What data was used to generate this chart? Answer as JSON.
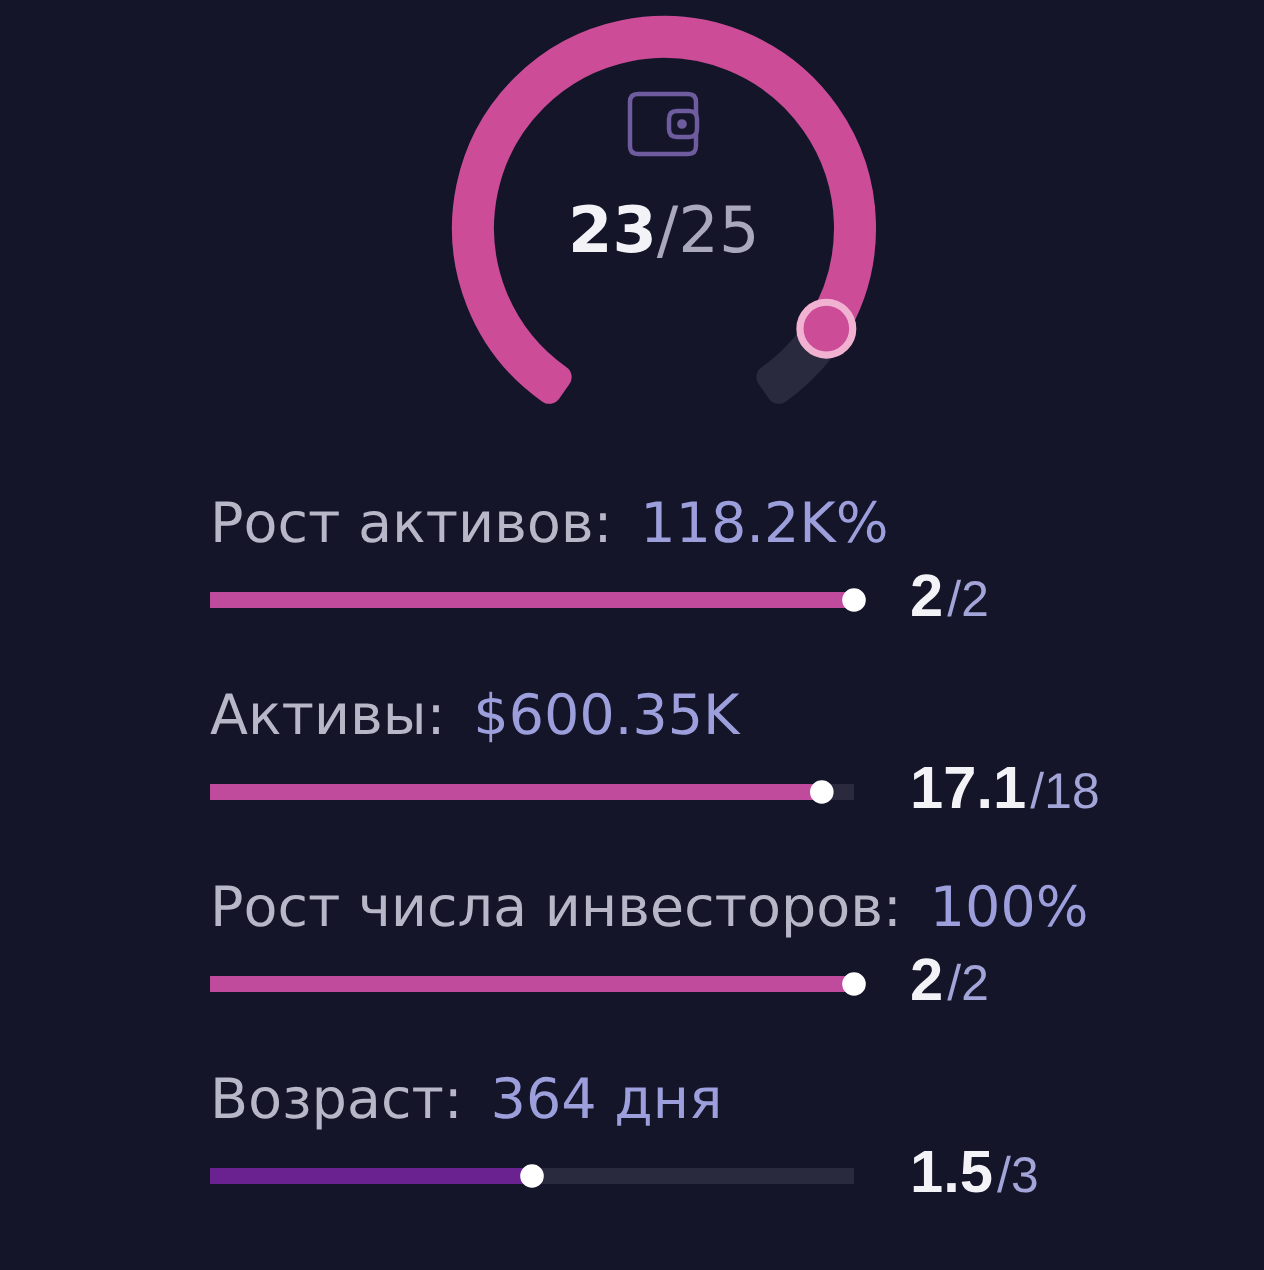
{
  "chart_data": [
    {
      "type": "other",
      "values": [
        23,
        25
      ],
      "value_labels": [
        "23",
        "/25"
      ],
      "colors": [
        "#cc4c98",
        "#292a3d"
      ]
    },
    {
      "type": "other",
      "title": "Рост активов:",
      "subtitle": "118.2K%",
      "values": [
        2,
        2
      ],
      "value_labels": [
        "2",
        "/2"
      ],
      "colors": [
        "#c04a9c",
        "#292a3d"
      ]
    },
    {
      "type": "other",
      "title": "Активы:",
      "subtitle": "$600.35K",
      "values": [
        17.1,
        18
      ],
      "value_labels": [
        "17.1",
        "/18"
      ],
      "colors": [
        "#c04a9c",
        "#292a3d"
      ]
    },
    {
      "type": "other",
      "title": "Рост числа инвесторов:",
      "subtitle": "100%",
      "values": [
        2,
        2
      ],
      "value_labels": [
        "2",
        "/2"
      ],
      "colors": [
        "#c04a9c",
        "#292a3d"
      ]
    },
    {
      "type": "other",
      "title": "Возраст:",
      "subtitle": "364 дня",
      "values": [
        1.5,
        3
      ],
      "value_labels": [
        "1.5",
        "/3"
      ],
      "colors": [
        "#6a2290",
        "#292a3d"
      ]
    }
  ]
}
